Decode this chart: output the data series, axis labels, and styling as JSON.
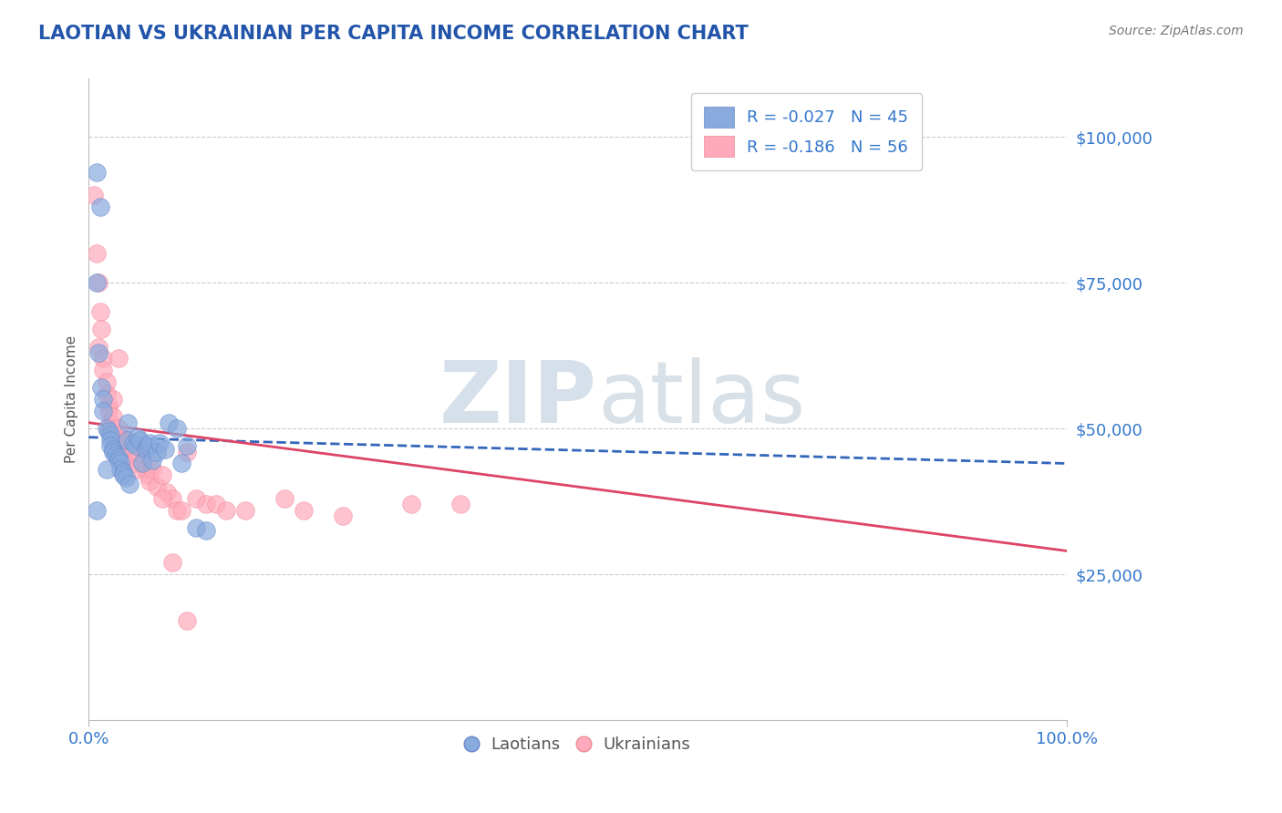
{
  "title": "LAOTIAN VS UKRAINIAN PER CAPITA INCOME CORRELATION CHART",
  "source_text": "Source: ZipAtlas.com",
  "ylabel": "Per Capita Income",
  "watermark_zip": "ZIP",
  "watermark_atlas": "atlas",
  "xlim": [
    0.0,
    1.0
  ],
  "ylim": [
    0,
    110000
  ],
  "yticks": [
    25000,
    50000,
    75000,
    100000
  ],
  "ytick_labels": [
    "$25,000",
    "$50,000",
    "$75,000",
    "$100,000"
  ],
  "xtick_labels": [
    "0.0%",
    "100.0%"
  ],
  "blue_color": "#88AADD",
  "blue_edge_color": "#6688CC",
  "pink_color": "#FFAABC",
  "pink_edge_color": "#EE8899",
  "blue_line_color": "#3366BB",
  "pink_line_color": "#DD4466",
  "legend_laotians": "Laotians",
  "legend_ukrainians": "Ukrainians",
  "title_color": "#2255AA",
  "axis_label_color": "#3377CC",
  "blue_r": -0.027,
  "blue_n": 45,
  "pink_r": -0.186,
  "pink_n": 56,
  "blue_intercept": 48500,
  "blue_slope": -4500,
  "pink_intercept": 51000,
  "pink_slope": -22000,
  "blue_points_x": [
    0.008,
    0.012,
    0.008,
    0.01,
    0.013,
    0.015,
    0.015,
    0.018,
    0.02,
    0.022,
    0.022,
    0.022,
    0.025,
    0.025,
    0.028,
    0.03,
    0.03,
    0.032,
    0.032,
    0.035,
    0.035,
    0.038,
    0.04,
    0.04,
    0.042,
    0.045,
    0.048,
    0.05,
    0.052,
    0.055,
    0.058,
    0.06,
    0.062,
    0.065,
    0.07,
    0.072,
    0.078,
    0.082,
    0.09,
    0.095,
    0.1,
    0.11,
    0.12,
    0.008,
    0.018
  ],
  "blue_points_y": [
    94000,
    88000,
    75000,
    63000,
    57000,
    55000,
    53000,
    50000,
    49500,
    49000,
    48000,
    47000,
    46500,
    46000,
    45500,
    45000,
    44500,
    44000,
    43000,
    42500,
    42000,
    41500,
    51000,
    48000,
    40500,
    47500,
    47000,
    48500,
    48000,
    44000,
    46500,
    47000,
    47500,
    44500,
    46000,
    47500,
    46500,
    51000,
    50000,
    44000,
    47000,
    33000,
    32500,
    36000,
    43000
  ],
  "pink_points_x": [
    0.005,
    0.008,
    0.01,
    0.01,
    0.012,
    0.013,
    0.015,
    0.015,
    0.018,
    0.018,
    0.02,
    0.02,
    0.022,
    0.022,
    0.025,
    0.025,
    0.025,
    0.028,
    0.03,
    0.03,
    0.032,
    0.032,
    0.035,
    0.035,
    0.038,
    0.04,
    0.042,
    0.045,
    0.048,
    0.05,
    0.052,
    0.055,
    0.058,
    0.06,
    0.062,
    0.065,
    0.07,
    0.075,
    0.08,
    0.085,
    0.09,
    0.095,
    0.1,
    0.11,
    0.12,
    0.13,
    0.14,
    0.16,
    0.2,
    0.22,
    0.26,
    0.33,
    0.38,
    0.1,
    0.085,
    0.075
  ],
  "pink_points_y": [
    90000,
    80000,
    75000,
    64000,
    70000,
    67000,
    62000,
    60000,
    56000,
    58000,
    54000,
    53000,
    51000,
    50000,
    55000,
    52000,
    49000,
    48000,
    62000,
    50000,
    48000,
    47000,
    46000,
    45000,
    48000,
    47000,
    45000,
    44000,
    43000,
    46000,
    47000,
    44000,
    43000,
    42000,
    41000,
    43000,
    40000,
    42000,
    39000,
    38000,
    36000,
    36000,
    46000,
    38000,
    37000,
    37000,
    36000,
    36000,
    38000,
    36000,
    35000,
    37000,
    37000,
    17000,
    27000,
    38000
  ],
  "background_color": "#FFFFFF",
  "grid_color": "#CCCCCC",
  "fig_width": 14.06,
  "fig_height": 8.92
}
